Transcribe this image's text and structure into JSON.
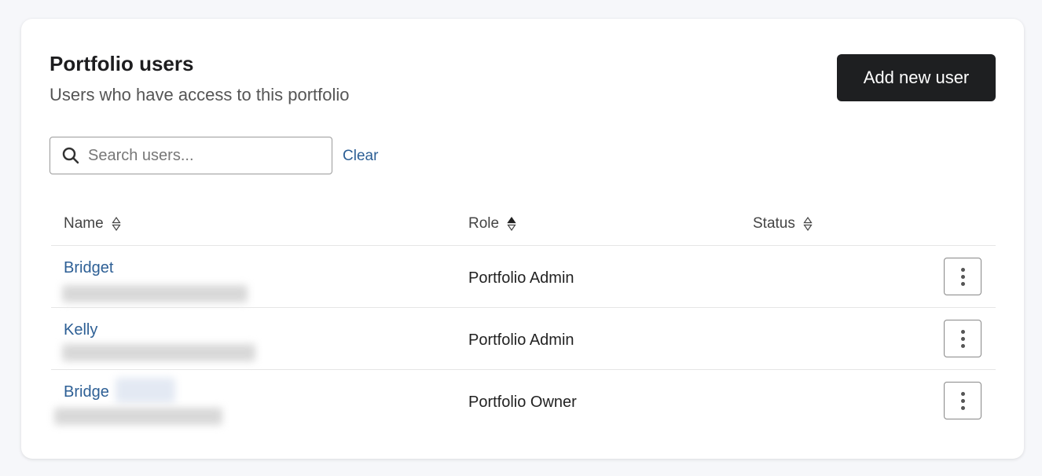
{
  "header": {
    "title": "Portfolio users",
    "subtitle": "Users who have access to this portfolio",
    "add_button": "Add new user"
  },
  "search": {
    "placeholder": "Search users...",
    "value": "",
    "clear_label": "Clear"
  },
  "table": {
    "columns": [
      {
        "label": "Name",
        "sort": "none"
      },
      {
        "label": "Role",
        "sort": "ascending"
      },
      {
        "label": "Status",
        "sort": "none"
      }
    ],
    "rows": [
      {
        "name": "Bridget",
        "role": "Portfolio Admin",
        "status": ""
      },
      {
        "name": "Kelly",
        "role": "Portfolio Admin",
        "status": ""
      },
      {
        "name": "Bridge",
        "role": "Portfolio Owner",
        "status": ""
      }
    ]
  },
  "colors": {
    "link": "#2d5f95",
    "primary_button": "#1e1f21"
  }
}
